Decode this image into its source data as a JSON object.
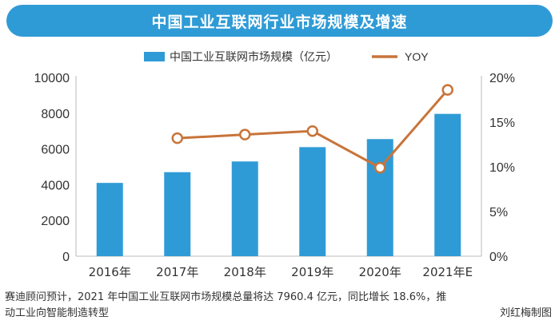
{
  "colors": {
    "banner": "#2f9bd6",
    "bar": "#2f9bd6",
    "line": "#c8743a",
    "marker_fill": "#ffffff",
    "axis": "#bbbbbb",
    "text": "#333333"
  },
  "chart_data": {
    "type": "bar",
    "title": "中国工业互联网行业市场规模及增速",
    "categories": [
      "2016年",
      "2017年",
      "2018年",
      "2019年",
      "2020年",
      "2021年E"
    ],
    "series": [
      {
        "name": "中国工业互联网市场规模（亿元）",
        "type": "bar",
        "axis": "left",
        "values": [
          4100,
          4700,
          5300,
          6100,
          6550,
          7960.4
        ]
      },
      {
        "name": "YOY",
        "type": "line",
        "axis": "right",
        "values": [
          null,
          13.2,
          13.6,
          14.0,
          9.9,
          18.6
        ]
      }
    ],
    "y_left": {
      "min": 0,
      "max": 10000,
      "ticks": [
        "0",
        "2000",
        "4000",
        "6000",
        "8000",
        "10000"
      ]
    },
    "y_right": {
      "min": 0,
      "max": 20,
      "ticks": [
        "0%",
        "5%",
        "10%",
        "15%",
        "20%"
      ]
    },
    "legend_position": "top-center",
    "grid": false
  },
  "caption": {
    "line1": "赛迪顾问预计，2021 年中国工业互联网市场规模总量将达 7960.4 亿元，同比增长 18.6%，推",
    "line2": "动工业向智能制造转型",
    "credit": "刘红梅制图"
  }
}
